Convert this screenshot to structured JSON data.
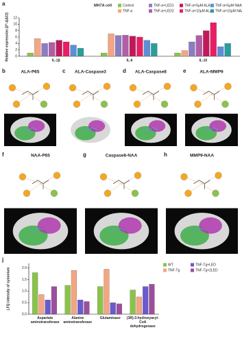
{
  "chart_data": [
    {
      "type": "bar",
      "panel": "a",
      "title": "MH7A cell",
      "y_label": "Relative expression (2^-ΔΔCt)",
      "categories": [
        "IL-1β",
        "IL-6",
        "IL-10"
      ],
      "series": [
        {
          "name": "Control",
          "color": "#8bc34a",
          "values": [
            1,
            1,
            1
          ]
        },
        {
          "name": "TNF-α",
          "color": "#f4a582",
          "values": [
            5.5,
            7,
            1.8
          ]
        },
        {
          "name": "TNF-α+LED1",
          "color": "#8e7cc3",
          "values": [
            4,
            6.5,
            4.5
          ]
        },
        {
          "name": "TNF-α+LED2",
          "color": "#b05ea8",
          "values": [
            4.3,
            6.6,
            6.5
          ]
        },
        {
          "name": "TNF-α+5μM ALA",
          "color": "#c2185b",
          "values": [
            5,
            6.3,
            8
          ]
        },
        {
          "name": "TNF-α+10μM ALA",
          "color": "#e91e63",
          "values": [
            4.5,
            6,
            10.5
          ]
        },
        {
          "name": "TNF-α+5μM NAA",
          "color": "#5c8fd6",
          "values": [
            3.5,
            5,
            3
          ]
        },
        {
          "name": "TNF-α+10μM NAA",
          "color": "#2a9d9d",
          "values": [
            2.5,
            4,
            4
          ]
        }
      ],
      "ylim": [
        0,
        12
      ],
      "yticks": [
        0,
        2,
        4,
        6,
        8,
        10,
        12
      ]
    },
    {
      "type": "bar",
      "panel": "j",
      "y_label": "LFQ intensity of synovium",
      "categories": [
        "Aspartate aminotransferase",
        "Alanine aminotransferase",
        "Glutaminase",
        "(3R)-3-hydroxyacyl-CoA dehydrogenase"
      ],
      "series": [
        {
          "name": "WT",
          "color": "#8bc34a",
          "values": [
            1.8,
            1.25,
            1.2,
            1.05
          ]
        },
        {
          "name": "TNF-Tg",
          "color": "#f4a582",
          "values": [
            0.85,
            1.9,
            1.95,
            0.75
          ]
        },
        {
          "name": "TNF-Tg+LED",
          "color": "#6a5acd",
          "values": [
            0.62,
            0.62,
            0.5,
            1.2
          ]
        },
        {
          "name": "TNF-Tg+2LED",
          "color": "#9c4f9c",
          "values": [
            1.2,
            0.55,
            0.45,
            1.3
          ]
        }
      ],
      "ylim": [
        0,
        2.2
      ],
      "yticks": [
        {
          "value": 0,
          "label": "0.0"
        },
        0.5,
        {
          "value": 1,
          "label": "1.0"
        },
        1.5,
        {
          "value": 2,
          "label": "2.0"
        }
      ]
    }
  ],
  "panels": [
    {
      "letter": "b",
      "title": "ALA-P65"
    },
    {
      "letter": "c",
      "title": "ALA-Caspase3"
    },
    {
      "letter": "d",
      "title": "ALA-Caspase8"
    },
    {
      "letter": "e",
      "title": "ALA-MMP9"
    },
    {
      "letter": "f",
      "title": "NAA-P65"
    },
    {
      "letter": "g",
      "title": "Caspase8-NAA"
    },
    {
      "letter": "h",
      "title": "MMP9-NAA"
    }
  ]
}
